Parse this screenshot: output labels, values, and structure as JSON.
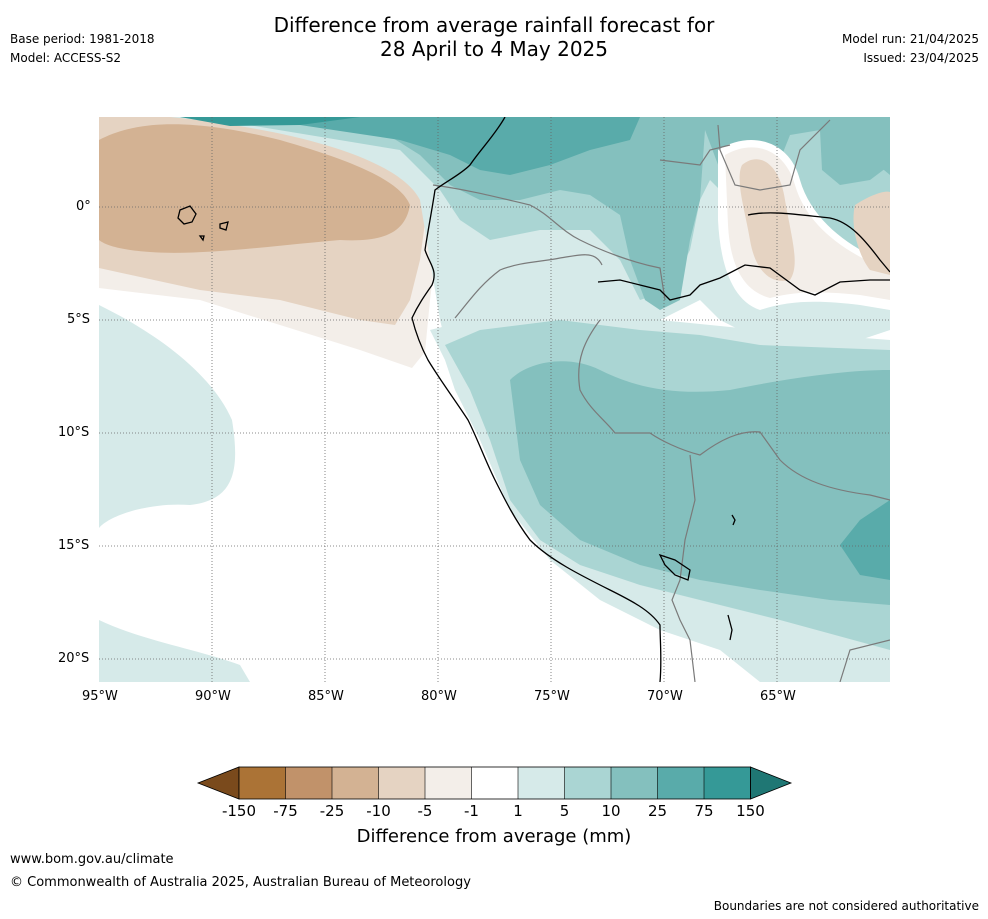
{
  "header": {
    "title_line1": "Difference from average rainfall forecast for",
    "title_line2": "28 April to 4 May 2025",
    "base_period": "Base period: 1981-2018",
    "model": "Model: ACCESS-S2",
    "model_run": "Model run: 21/04/2025",
    "issued": "Issued: 23/04/2025"
  },
  "map": {
    "lat_labels": [
      "0°",
      "5°S",
      "10°S",
      "15°S",
      "20°S"
    ],
    "lon_labels": [
      "95°W",
      "90°W",
      "85°W",
      "80°W",
      "75°W",
      "70°W",
      "65°W"
    ]
  },
  "legend": {
    "title": "Difference from average (mm)",
    "ticks": [
      "-150",
      "-75",
      "-25",
      "-10",
      "-5",
      "-1",
      "1",
      "5",
      "10",
      "25",
      "75",
      "150"
    ],
    "colors": [
      "#7a4a1c",
      "#ab7336",
      "#c1926a",
      "#d3b293",
      "#e5d3c2",
      "#f3eee9",
      "#ffffff",
      "#d6eae9",
      "#aad5d3",
      "#84c0be",
      "#59abaa",
      "#359997",
      "#1f7774"
    ]
  },
  "footer": {
    "url": "www.bom.gov.au/climate",
    "copyright": "© Commonwealth of Australia 2025, Australian Bureau of Meteorology",
    "disclaimer": "Boundaries are not considered authoritative"
  }
}
